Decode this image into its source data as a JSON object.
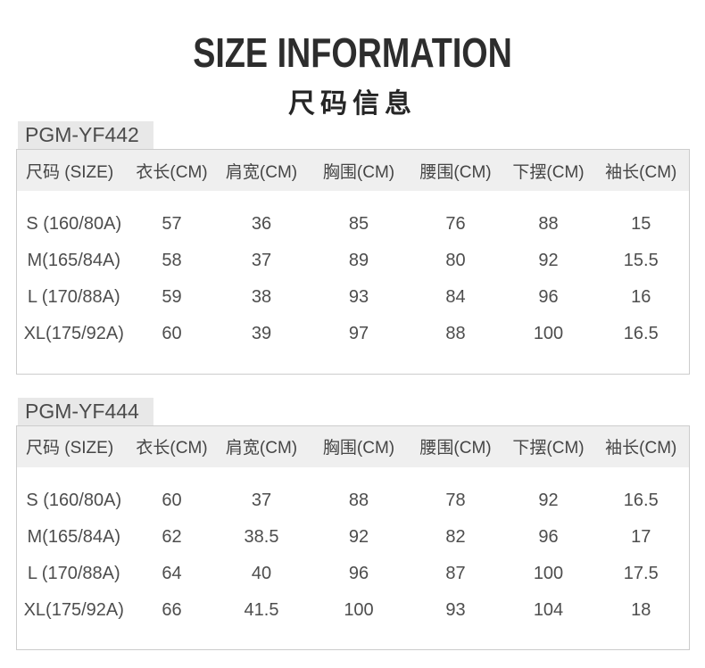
{
  "page": {
    "title_en": "SIZE INFORMATION",
    "title_zh": "尺码信息"
  },
  "colors": {
    "title_text": "#2d2d2d",
    "body_text": "#4d4d4d",
    "header_row_bg": "#efefef",
    "model_label_bg": "#e8e8e8",
    "table_border": "#cccccc"
  },
  "tables": [
    {
      "model": "PGM-YF442",
      "headers": [
        "尺码 (SIZE)",
        "衣长(CM)",
        "肩宽(CM)",
        "胸围(CM)",
        "腰围(CM)",
        "下摆(CM)",
        "袖长(CM)"
      ],
      "rows": [
        [
          "S (160/80A)",
          "57",
          "36",
          "85",
          "76",
          "88",
          "15"
        ],
        [
          "M(165/84A)",
          "58",
          "37",
          "89",
          "80",
          "92",
          "15.5"
        ],
        [
          "L (170/88A)",
          "59",
          "38",
          "93",
          "84",
          "96",
          "16"
        ],
        [
          "XL(175/92A)",
          "60",
          "39",
          "97",
          "88",
          "100",
          "16.5"
        ]
      ]
    },
    {
      "model": "PGM-YF444",
      "headers": [
        "尺码 (SIZE)",
        "衣长(CM)",
        "肩宽(CM)",
        "胸围(CM)",
        "腰围(CM)",
        "下摆(CM)",
        "袖长(CM)"
      ],
      "rows": [
        [
          "S (160/80A)",
          "60",
          "37",
          "88",
          "78",
          "92",
          "16.5"
        ],
        [
          "M(165/84A)",
          "62",
          "38.5",
          "92",
          "82",
          "96",
          "17"
        ],
        [
          "L (170/88A)",
          "64",
          "40",
          "96",
          "87",
          "100",
          "17.5"
        ],
        [
          "XL(175/92A)",
          "66",
          "41.5",
          "100",
          "93",
          "104",
          "18"
        ]
      ]
    }
  ]
}
